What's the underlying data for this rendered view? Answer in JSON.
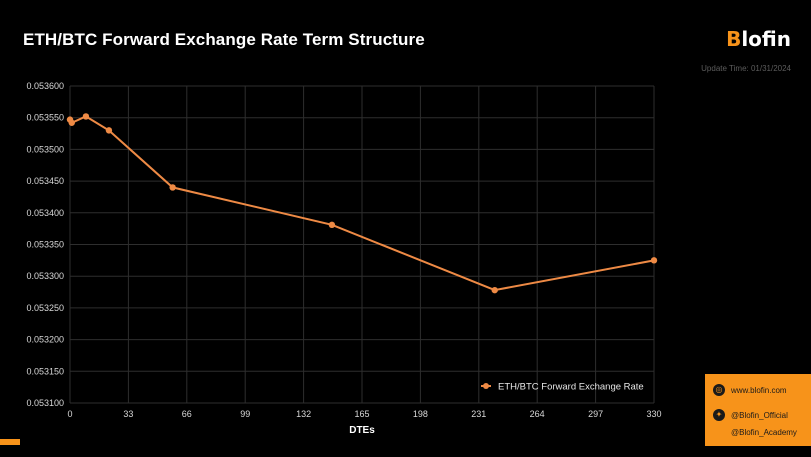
{
  "header": {
    "title": "ETH/BTC Forward Exchange Rate Term Structure",
    "logo_b": "B",
    "logo_rest": "lofin",
    "update_time": "Update Time: 01/31/2024"
  },
  "colors": {
    "accent": "#f7931a",
    "line": "#ee8a45",
    "background": "#000000",
    "grid": "#2e2e2e"
  },
  "chart_data": {
    "type": "line",
    "title": "ETH/BTC Forward Exchange Rate Term Structure",
    "xlabel": "DTEs",
    "ylabel": "",
    "xlim": [
      0,
      330
    ],
    "ylim": [
      0.0531,
      0.0536
    ],
    "x_ticks": [
      "0",
      "33",
      "66",
      "99",
      "132",
      "165",
      "198",
      "231",
      "264",
      "297",
      "330"
    ],
    "y_ticks": [
      "0.053100",
      "0.053150",
      "0.053200",
      "0.053250",
      "0.053300",
      "0.053350",
      "0.053400",
      "0.053450",
      "0.053500",
      "0.053550",
      "0.053600"
    ],
    "grid": true,
    "legend_position": "bottom-right",
    "series": [
      {
        "name": "ETH/BTC Forward Exchange Rate",
        "x": [
          0,
          1,
          9,
          22,
          58,
          148,
          240,
          330
        ],
        "values": [
          0.053547,
          0.053542,
          0.053552,
          0.05353,
          0.05344,
          0.053381,
          0.053278,
          0.053325
        ]
      }
    ]
  },
  "contact": {
    "website": "www.blofin.com",
    "twitter": "@Blofin_Official",
    "academy": "@Blofin_Academy"
  }
}
